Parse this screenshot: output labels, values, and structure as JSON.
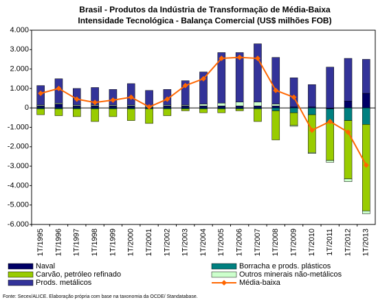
{
  "chart_data": {
    "type": "stacked-bar-line",
    "title": [
      "Brasil - Produtos da Indústria de Transformação de Média-Baixa",
      "Intensidade Tecnológica - Balança Comercial (US$ milhões FOB)"
    ],
    "source": "Fonte: Secex/ALICE. Elaboração própria com base na taxonomia da OCDE/ Standatabase.",
    "categories": [
      "1T/1995",
      "1T/1996",
      "1T/1997",
      "1T/1998",
      "1T/1999",
      "1T/2000",
      "1T/2001",
      "1T/2002",
      "1T/2003",
      "1T/2004",
      "1T/2005",
      "1T/2006",
      "1T/2007",
      "1T/2008",
      "1T/2009",
      "1T/2010",
      "1T/2011",
      "1T/2012",
      "1T/2013"
    ],
    "series": [
      {
        "name": "Naval",
        "color": "#000066",
        "kind": "bar",
        "values": [
          100,
          200,
          100,
          100,
          100,
          100,
          50,
          100,
          100,
          100,
          100,
          100,
          100,
          100,
          50,
          50,
          -50,
          350,
          750
        ]
      },
      {
        "name": "Borracha e prods. plásticos",
        "color": "#008080",
        "kind": "bar",
        "values": [
          -50,
          -50,
          -50,
          -50,
          -50,
          -50,
          -50,
          -50,
          -50,
          -50,
          -50,
          -50,
          -50,
          -150,
          -250,
          -350,
          -700,
          -650,
          -850
        ]
      },
      {
        "name": "Carvão, petróleo refinado",
        "color": "#99cc00",
        "kind": "bar",
        "values": [
          -300,
          -350,
          -400,
          -650,
          -400,
          -600,
          -750,
          -350,
          -100,
          -200,
          -200,
          -100,
          -650,
          -1500,
          -650,
          -1950,
          -1950,
          -3000,
          -4450
        ]
      },
      {
        "name": "Outros minerais não-metálicos",
        "color": "#ccffcc",
        "kind": "bar",
        "values": [
          50,
          50,
          50,
          50,
          50,
          50,
          50,
          50,
          50,
          100,
          150,
          200,
          200,
          100,
          -50,
          -50,
          -100,
          -150,
          -150
        ]
      },
      {
        "name": "Prods. metálicos",
        "color": "#333399",
        "kind": "bar",
        "values": [
          1000,
          1250,
          850,
          900,
          800,
          1100,
          800,
          800,
          1250,
          1650,
          2600,
          2550,
          3000,
          2400,
          1500,
          1150,
          2100,
          2200,
          1750
        ]
      },
      {
        "name": "Média-baixa",
        "color": "#ff6600",
        "kind": "line",
        "values": [
          750,
          1000,
          450,
          280,
          400,
          550,
          50,
          450,
          1150,
          1500,
          2550,
          2600,
          2550,
          900,
          550,
          -1150,
          -700,
          -1250,
          -2950
        ]
      }
    ],
    "ylim": [
      -6000,
      4000
    ],
    "yticks": [
      {
        "value": 4000,
        "label": "4.000"
      },
      {
        "value": 3000,
        "label": "3.000"
      },
      {
        "value": 2000,
        "label": "2.000"
      },
      {
        "value": 1000,
        "label": "1.000"
      },
      0,
      {
        "value": -1000,
        "label": "-1.000"
      },
      {
        "value": -2000,
        "label": "-2.000"
      },
      {
        "value": -3000,
        "label": "-3.000"
      },
      {
        "value": -4000,
        "label": "-4.000"
      },
      {
        "value": -5000,
        "label": "-5.000"
      },
      {
        "value": -6000,
        "label": "-6.000"
      }
    ],
    "grid": false
  }
}
